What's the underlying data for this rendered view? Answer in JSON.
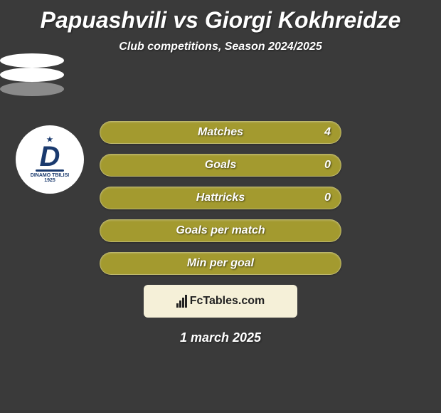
{
  "title": "Papuashvili vs Giorgi Kokhreidze",
  "subtitle": "Club competitions, Season 2024/2025",
  "stats": [
    {
      "label": "Matches",
      "value_right": "4",
      "bg": "#a39a2f",
      "show_value": true
    },
    {
      "label": "Goals",
      "value_right": "0",
      "bg": "#a39a2f",
      "show_value": true
    },
    {
      "label": "Hattricks",
      "value_right": "0",
      "bg": "#a39a2f",
      "show_value": true
    },
    {
      "label": "Goals per match",
      "value_right": "",
      "bg": "#a39a2f",
      "show_value": false
    },
    {
      "label": "Min per goal",
      "value_right": "",
      "bg": "#a39a2f",
      "show_value": false
    }
  ],
  "footer": {
    "brand": "FcTables.com",
    "box_bg": "#f5f0d8",
    "text_color": "#222222"
  },
  "date": "1 march 2025",
  "club_logo": {
    "top_text": "DINAMO TBILISI",
    "letter": "D",
    "year": "1925",
    "color": "#1a3a6e"
  },
  "colors": {
    "page_bg": "#3a3a3a",
    "text": "#ffffff",
    "badge_white": "#ffffff",
    "badge_gray": "#8a8a8a"
  }
}
